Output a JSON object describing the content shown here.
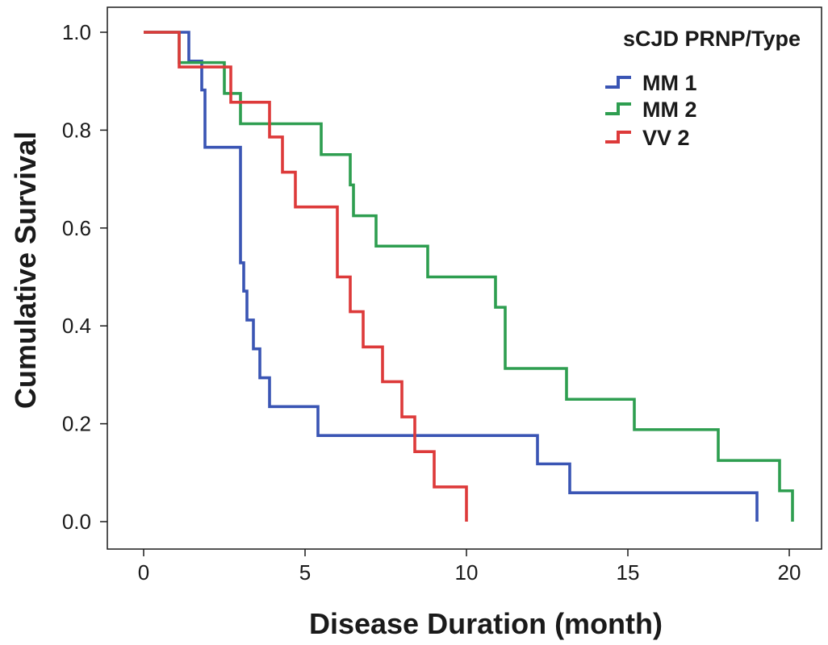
{
  "chart_data": {
    "type": "line",
    "step": true,
    "xlabel": "Disease Duration (month)",
    "ylabel": "Cumulative Survival",
    "xlim": [
      0,
      20
    ],
    "ylim": [
      0,
      1
    ],
    "xticks": [
      "0",
      "5",
      "10",
      "15",
      "20"
    ],
    "yticks": [
      "0.0",
      "0.2",
      "0.4",
      "0.6",
      "0.8",
      "1.0"
    ],
    "grid": false,
    "legend": {
      "title": "sCJD PRNP/Type",
      "position": "top-right"
    },
    "series": [
      {
        "name": "MM 1",
        "color": "#3a55b4",
        "points": [
          [
            0,
            1.0
          ],
          [
            1.4,
            0.941
          ],
          [
            1.8,
            0.882
          ],
          [
            1.9,
            0.765
          ],
          [
            3.0,
            0.529
          ],
          [
            3.1,
            0.471
          ],
          [
            3.2,
            0.412
          ],
          [
            3.4,
            0.353
          ],
          [
            3.6,
            0.294
          ],
          [
            3.9,
            0.235
          ],
          [
            5.4,
            0.176
          ],
          [
            12.2,
            0.118
          ],
          [
            13.2,
            0.059
          ],
          [
            19.0,
            0.0
          ]
        ]
      },
      {
        "name": "MM 2",
        "color": "#2e9e50",
        "points": [
          [
            0,
            1.0
          ],
          [
            1.1,
            0.938
          ],
          [
            2.5,
            0.875
          ],
          [
            3.0,
            0.813
          ],
          [
            5.5,
            0.75
          ],
          [
            6.4,
            0.688
          ],
          [
            6.5,
            0.625
          ],
          [
            7.2,
            0.563
          ],
          [
            8.8,
            0.5
          ],
          [
            10.9,
            0.438
          ],
          [
            11.2,
            0.313
          ],
          [
            13.1,
            0.25
          ],
          [
            15.2,
            0.188
          ],
          [
            17.8,
            0.125
          ],
          [
            19.7,
            0.063
          ],
          [
            20.1,
            0.0
          ]
        ]
      },
      {
        "name": "VV 2",
        "color": "#dd3a3a",
        "points": [
          [
            0,
            1.0
          ],
          [
            1.1,
            0.929
          ],
          [
            2.7,
            0.857
          ],
          [
            3.9,
            0.786
          ],
          [
            4.3,
            0.714
          ],
          [
            4.7,
            0.643
          ],
          [
            6.0,
            0.5
          ],
          [
            6.4,
            0.429
          ],
          [
            6.8,
            0.357
          ],
          [
            7.4,
            0.286
          ],
          [
            8.0,
            0.214
          ],
          [
            8.4,
            0.143
          ],
          [
            9.0,
            0.071
          ],
          [
            10.0,
            0.0
          ]
        ]
      }
    ]
  }
}
